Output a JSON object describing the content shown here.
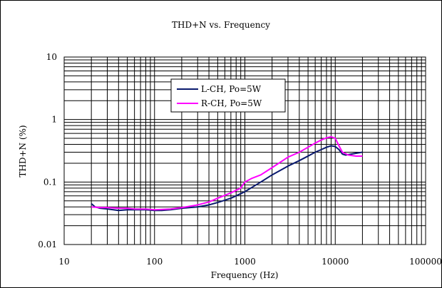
{
  "chart_data": {
    "type": "line",
    "title": "THD+N vs. Frequency",
    "xlabel": "Frequency (Hz)",
    "ylabel": "THD+N (%)",
    "x_scale": "log",
    "y_scale": "log",
    "xlim": [
      10,
      100000
    ],
    "ylim": [
      0.01,
      10
    ],
    "x_ticks": [
      10,
      100,
      1000,
      10000,
      100000
    ],
    "x_tick_labels": [
      "10",
      "100",
      "1000",
      "10000",
      "100000"
    ],
    "y_ticks": [
      0.01,
      0.1,
      1,
      10
    ],
    "y_tick_labels": [
      "0.01",
      "0.1",
      "1",
      "10"
    ],
    "grid": true,
    "legend_position": "top-center",
    "series": [
      {
        "name": "L-CH, Po=5W",
        "color": "#0a1a6e",
        "points": [
          [
            20,
            0.045
          ],
          [
            22,
            0.04
          ],
          [
            25,
            0.038
          ],
          [
            30,
            0.037
          ],
          [
            35,
            0.036
          ],
          [
            40,
            0.035
          ],
          [
            50,
            0.036
          ],
          [
            60,
            0.036
          ],
          [
            70,
            0.036
          ],
          [
            80,
            0.036
          ],
          [
            100,
            0.035
          ],
          [
            120,
            0.035
          ],
          [
            150,
            0.036
          ],
          [
            200,
            0.038
          ],
          [
            300,
            0.04
          ],
          [
            400,
            0.043
          ],
          [
            500,
            0.047
          ],
          [
            700,
            0.055
          ],
          [
            1000,
            0.07
          ],
          [
            1500,
            0.1
          ],
          [
            2000,
            0.13
          ],
          [
            3000,
            0.18
          ],
          [
            4000,
            0.22
          ],
          [
            5000,
            0.26
          ],
          [
            6000,
            0.3
          ],
          [
            7000,
            0.33
          ],
          [
            8000,
            0.36
          ],
          [
            9000,
            0.38
          ],
          [
            10000,
            0.37
          ],
          [
            11000,
            0.33
          ],
          [
            12000,
            0.28
          ],
          [
            13000,
            0.27
          ],
          [
            15000,
            0.28
          ],
          [
            20000,
            0.3
          ]
        ]
      },
      {
        "name": "R-CH, Po=5W",
        "color": "#ff00ff",
        "points": [
          [
            20,
            0.04
          ],
          [
            25,
            0.039
          ],
          [
            30,
            0.039
          ],
          [
            40,
            0.038
          ],
          [
            50,
            0.038
          ],
          [
            60,
            0.037
          ],
          [
            80,
            0.037
          ],
          [
            100,
            0.036
          ],
          [
            150,
            0.037
          ],
          [
            200,
            0.039
          ],
          [
            300,
            0.043
          ],
          [
            400,
            0.048
          ],
          [
            500,
            0.055
          ],
          [
            700,
            0.067
          ],
          [
            900,
            0.08
          ],
          [
            1000,
            0.1
          ],
          [
            1200,
            0.115
          ],
          [
            1500,
            0.13
          ],
          [
            2000,
            0.17
          ],
          [
            3000,
            0.25
          ],
          [
            4000,
            0.3
          ],
          [
            5000,
            0.36
          ],
          [
            6000,
            0.42
          ],
          [
            7000,
            0.47
          ],
          [
            8000,
            0.51
          ],
          [
            9000,
            0.53
          ],
          [
            10000,
            0.5
          ],
          [
            11000,
            0.38
          ],
          [
            12000,
            0.3
          ],
          [
            14000,
            0.27
          ],
          [
            17000,
            0.26
          ],
          [
            20000,
            0.26
          ]
        ]
      }
    ]
  }
}
